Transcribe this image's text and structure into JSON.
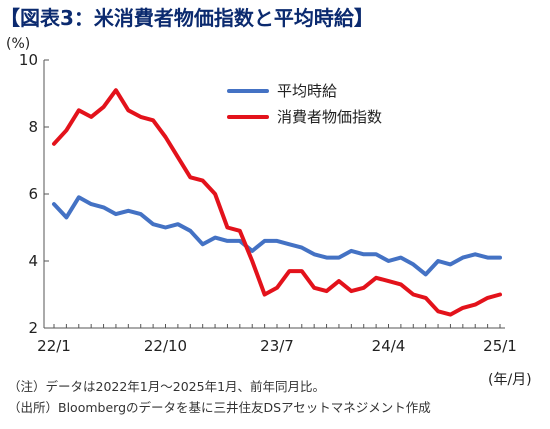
{
  "title": "【図表3：米消費者物価指数と平均時給】",
  "notes": {
    "line1": "（注）データは2022年1月～2025年1月、前年同月比。",
    "line2": "（出所）Bloombergのデータを基に三井住友DSアセットマネジメント作成"
  },
  "chart_data": {
    "type": "line",
    "title": "【図表3：米消費者物価指数と平均時給】",
    "y_unit": "(%)",
    "x_unit": "(年/月)",
    "ylim": [
      2,
      10
    ],
    "yticks": [
      2,
      4,
      6,
      8,
      10
    ],
    "xtick_labels": [
      {
        "index": 0,
        "label": "22/1"
      },
      {
        "index": 9,
        "label": "22/10"
      },
      {
        "index": 18,
        "label": "23/7"
      },
      {
        "index": 27,
        "label": "24/4"
      },
      {
        "index": 36,
        "label": "25/1"
      }
    ],
    "legend_position": "top-right",
    "grid": false,
    "x": [
      "22/1",
      "22/2",
      "22/3",
      "22/4",
      "22/5",
      "22/6",
      "22/7",
      "22/8",
      "22/9",
      "22/10",
      "22/11",
      "22/12",
      "23/1",
      "23/2",
      "23/3",
      "23/4",
      "23/5",
      "23/6",
      "23/7",
      "23/8",
      "23/9",
      "23/10",
      "23/11",
      "23/12",
      "24/1",
      "24/2",
      "24/3",
      "24/4",
      "24/5",
      "24/6",
      "24/7",
      "24/8",
      "24/9",
      "24/10",
      "24/11",
      "24/12",
      "25/1"
    ],
    "series": [
      {
        "name": "平均時給",
        "color": "#4472c4",
        "values": [
          5.7,
          5.3,
          5.9,
          5.7,
          5.6,
          5.4,
          5.5,
          5.4,
          5.1,
          5.0,
          5.1,
          4.9,
          4.5,
          4.7,
          4.6,
          4.6,
          4.3,
          4.6,
          4.6,
          4.5,
          4.4,
          4.2,
          4.1,
          4.1,
          4.3,
          4.2,
          4.2,
          4.0,
          4.1,
          3.9,
          3.6,
          4.0,
          3.9,
          4.1,
          4.2,
          4.1,
          4.1
        ]
      },
      {
        "name": "消費者物価指数",
        "color": "#e3121b",
        "values": [
          7.5,
          7.9,
          8.5,
          8.3,
          8.6,
          9.1,
          8.5,
          8.3,
          8.2,
          7.7,
          7.1,
          6.5,
          6.4,
          6.0,
          5.0,
          4.9,
          4.0,
          3.0,
          3.2,
          3.7,
          3.7,
          3.2,
          3.1,
          3.4,
          3.1,
          3.2,
          3.5,
          3.4,
          3.3,
          3.0,
          2.9,
          2.5,
          2.4,
          2.6,
          2.7,
          2.9,
          3.0
        ]
      }
    ]
  }
}
